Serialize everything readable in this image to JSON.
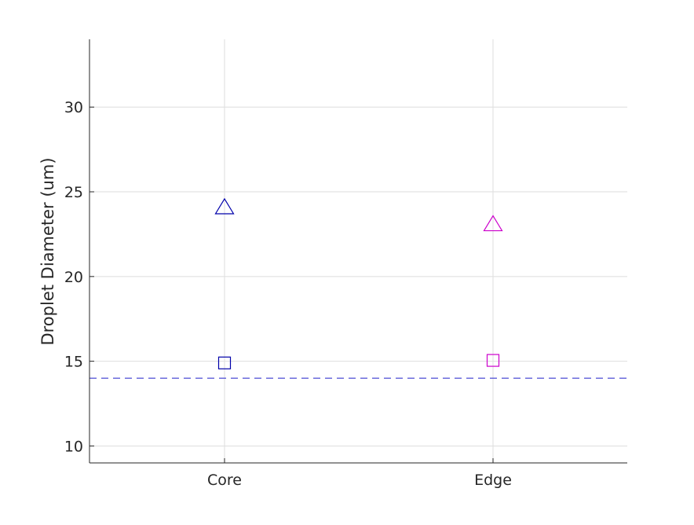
{
  "chart_data": {
    "type": "scatter",
    "title": "",
    "xlabel": "",
    "ylabel": "Droplet Diameter (um)",
    "categories": [
      "Core",
      "Edge"
    ],
    "ylim": [
      9,
      34
    ],
    "yticks": [
      10,
      15,
      20,
      25,
      30
    ],
    "grid": true,
    "legend": "none",
    "series": [
      {
        "marker": "triangle",
        "colors": [
          "#0000aa",
          "#cc00cc"
        ],
        "values": [
          24.1,
          23.1
        ]
      },
      {
        "marker": "square",
        "colors": [
          "#0000aa",
          "#cc00cc"
        ],
        "values": [
          14.9,
          15.05
        ]
      }
    ],
    "reference_line": {
      "y": 14,
      "style": "dashed",
      "color": "#3a3ad0"
    }
  }
}
